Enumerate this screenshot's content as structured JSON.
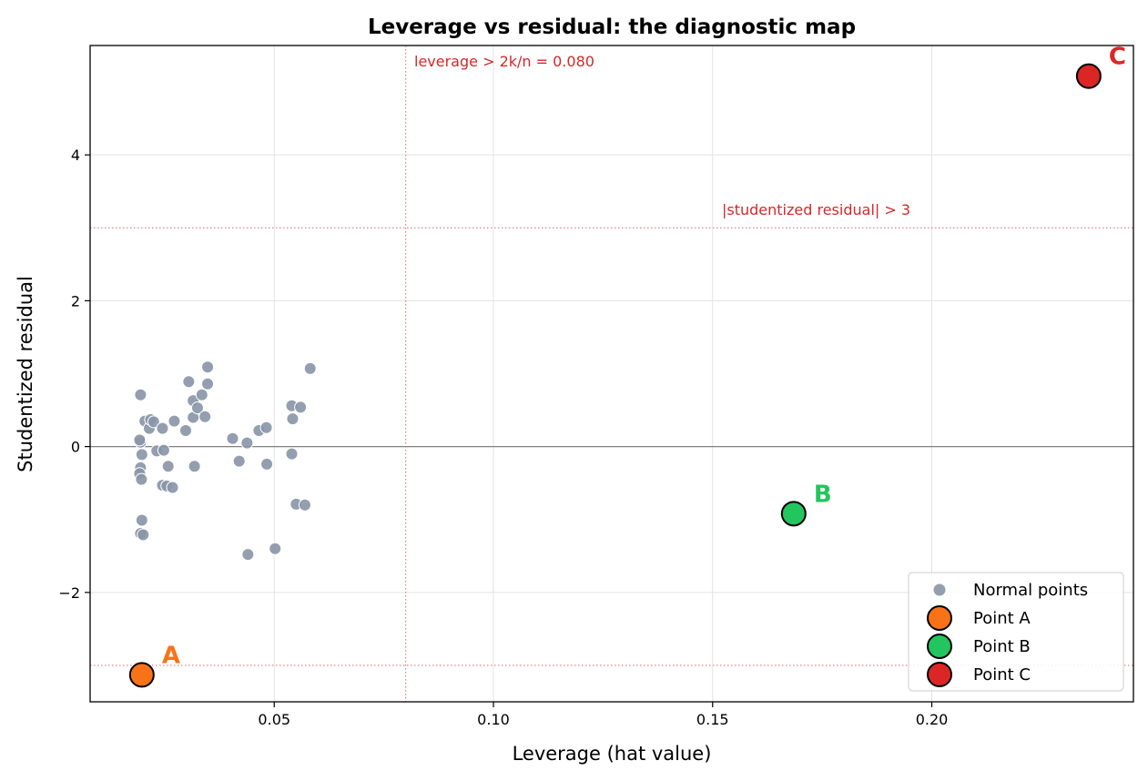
{
  "chart_data": {
    "type": "scatter",
    "title": "Leverage vs residual: the diagnostic map",
    "xlabel": "Leverage (hat value)",
    "ylabel": "Studentized residual",
    "xlim": [
      0.008,
      0.246
    ],
    "ylim": [
      -3.5,
      5.5
    ],
    "xticks": [
      0.05,
      0.1,
      0.15,
      0.2
    ],
    "xtick_labels": [
      "0.05",
      "0.10",
      "0.15",
      "0.20"
    ],
    "yticks": [
      -2,
      0,
      2,
      4
    ],
    "ytick_labels": [
      "−2",
      "0",
      "2",
      "4"
    ],
    "grid": true,
    "legend_position": "bottom-right",
    "zero_line_y": 0,
    "thresholds": {
      "leverage_x": 0.08,
      "leverage_label": "leverage > 2k/n = 0.080",
      "residual_abs": 3,
      "residual_label": "|studentized residual| > 3"
    },
    "series": [
      {
        "name": "Normal points",
        "color": "#8a96a8",
        "points": [
          [
            0.0195,
            0.71
          ],
          [
            0.0205,
            0.35
          ],
          [
            0.0215,
            0.25
          ],
          [
            0.0218,
            0.37
          ],
          [
            0.0225,
            0.34
          ],
          [
            0.0232,
            -0.06
          ],
          [
            0.0245,
            0.25
          ],
          [
            0.0248,
            -0.05
          ],
          [
            0.0195,
            0.06
          ],
          [
            0.0193,
            0.09
          ],
          [
            0.0198,
            -0.11
          ],
          [
            0.0195,
            -0.29
          ],
          [
            0.0193,
            -0.37
          ],
          [
            0.0197,
            -0.45
          ],
          [
            0.0245,
            -0.53
          ],
          [
            0.0255,
            -0.54
          ],
          [
            0.0268,
            -0.56
          ],
          [
            0.0258,
            -0.27
          ],
          [
            0.0272,
            0.35
          ],
          [
            0.0298,
            0.22
          ],
          [
            0.0305,
            0.89
          ],
          [
            0.0315,
            0.63
          ],
          [
            0.0315,
            0.4
          ],
          [
            0.0318,
            -0.27
          ],
          [
            0.0325,
            0.53
          ],
          [
            0.0335,
            0.71
          ],
          [
            0.0342,
            0.41
          ],
          [
            0.0348,
            0.86
          ],
          [
            0.0348,
            1.09
          ],
          [
            0.0198,
            -1.01
          ],
          [
            0.0195,
            -1.19
          ],
          [
            0.0201,
            -1.21
          ],
          [
            0.0405,
            0.11
          ],
          [
            0.042,
            -0.2
          ],
          [
            0.0438,
            0.05
          ],
          [
            0.044,
            -1.48
          ],
          [
            0.0465,
            0.22
          ],
          [
            0.0482,
            0.26
          ],
          [
            0.0483,
            -0.24
          ],
          [
            0.0502,
            -1.4
          ],
          [
            0.054,
            0.56
          ],
          [
            0.0542,
            0.38
          ],
          [
            0.054,
            -0.1
          ],
          [
            0.055,
            -0.79
          ],
          [
            0.056,
            0.54
          ],
          [
            0.057,
            -0.8
          ],
          [
            0.0582,
            1.07
          ]
        ]
      },
      {
        "name": "Point A",
        "label": "A",
        "color": "#f97316",
        "points": [
          [
            0.0198,
            -3.13
          ]
        ]
      },
      {
        "name": "Point B",
        "label": "B",
        "color": "#22c55e",
        "points": [
          [
            0.1685,
            -0.92
          ]
        ]
      },
      {
        "name": "Point C",
        "label": "C",
        "color": "#dc2626",
        "points": [
          [
            0.2358,
            5.08
          ]
        ]
      }
    ]
  }
}
